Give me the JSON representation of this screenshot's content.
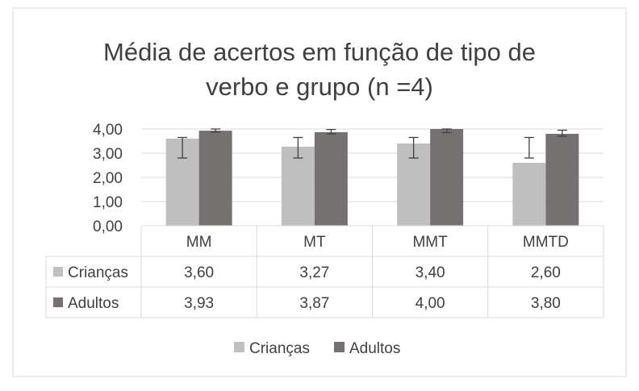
{
  "chart_data": {
    "type": "bar",
    "title": "Média de acertos em função de tipo de verbo e grupo (n =4)",
    "title_lines": [
      "Média de acertos em função de tipo de",
      "verbo e grupo (n =4)"
    ],
    "categories": [
      "MM",
      "MT",
      "MMT",
      "MMTD"
    ],
    "series": [
      {
        "name": "Crianças",
        "values": [
          3.6,
          3.27,
          3.4,
          2.6
        ],
        "display": [
          "3,60",
          "3,27",
          "3,40",
          "2,60"
        ],
        "color": "#bfbfbf",
        "error_low": [
          2.8,
          2.8,
          2.8,
          2.8
        ],
        "error_high": [
          3.65,
          3.65,
          3.65,
          3.65
        ]
      },
      {
        "name": "Adultos",
        "values": [
          3.93,
          3.87,
          4.0,
          3.8
        ],
        "display": [
          "3,93",
          "3,87",
          "4,00",
          "3,80"
        ],
        "color": "#767171",
        "error_low": [
          3.87,
          3.8,
          3.85,
          3.7
        ],
        "error_high": [
          4.0,
          3.98,
          4.0,
          3.95
        ]
      }
    ],
    "yticks": [
      "0,00",
      "1,00",
      "2,00",
      "3,00",
      "4,00"
    ],
    "ylim": [
      0,
      4
    ],
    "grid": true,
    "legend_position": "bottom",
    "data_table": true
  },
  "colors": {
    "border": "#d9d9d9",
    "grid": "#d9d9d9",
    "text": "#404040",
    "errorbar": "#404040"
  }
}
